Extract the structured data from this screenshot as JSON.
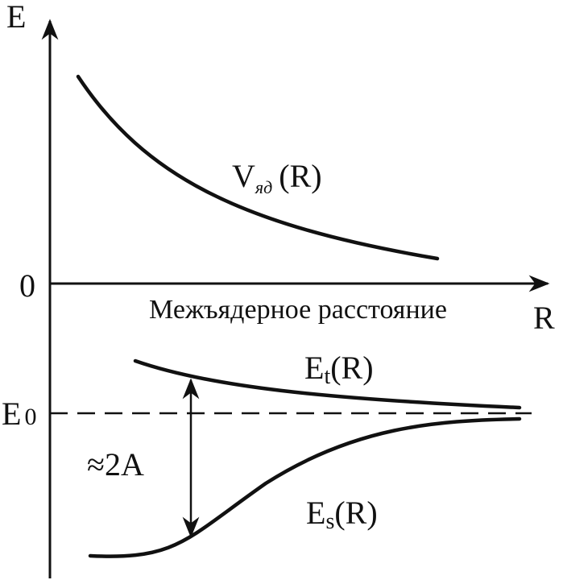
{
  "axes": {
    "y_label": "E",
    "x_label": "R",
    "zero_label": "0",
    "x_caption": "Межъядерное расстояние"
  },
  "curves": {
    "nuclear": {
      "symbol": "V",
      "subscript": "яд",
      "argument": "(R)"
    },
    "triplet": {
      "symbol": "E",
      "subscript": "t",
      "argument": "(R)"
    },
    "singlet": {
      "symbol": "E",
      "subscript": "s",
      "argument": "(R)"
    }
  },
  "level": {
    "symbol": "E",
    "subscript": "0"
  },
  "gap_label": "≈2A"
}
